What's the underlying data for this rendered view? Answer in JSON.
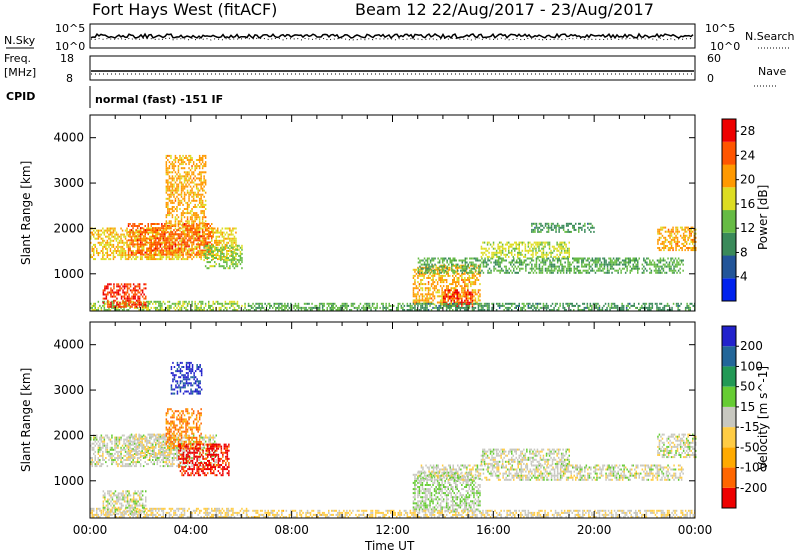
{
  "header": {
    "site": "Fort Hays West (fitACF)",
    "beam_date": "Beam 12 22/Aug/2017 - 23/Aug/2017"
  },
  "sky_panel": {
    "left_label": "N.Sky",
    "right_label": "N.Search",
    "left_ticks": [
      "10^5",
      "10^0"
    ],
    "right_ticks": [
      "10^5",
      "10^0"
    ]
  },
  "freq_panel": {
    "left_label_1": "Freq.",
    "left_label_2": "[MHz]",
    "right_label": "Nave",
    "left_ticks": [
      "18",
      "8"
    ],
    "right_ticks": [
      "60",
      "0"
    ]
  },
  "cpid": {
    "label": "CPID",
    "value": "normal (fast) -151 IF"
  },
  "colors": {
    "power_scale": [
      "#0022ee",
      "#225599",
      "#3a8a5a",
      "#66bb44",
      "#dddd22",
      "#ff9900",
      "#ff5500",
      "#ee0000"
    ],
    "velocity_scale": [
      "#ee0000",
      "#ff6600",
      "#ffaa00",
      "#ffcc44",
      "#c8c8c0",
      "#66cc33",
      "#229955",
      "#226699",
      "#2222cc"
    ]
  },
  "chart_data": [
    {
      "type": "heatmap",
      "name": "power",
      "title": "Fort Hays West (fitACF) Beam 12 22/Aug/2017 - 23/Aug/2017",
      "ylabel": "Slant Range [km]",
      "y_ticks": [
        "1000",
        "2000",
        "3000",
        "4000"
      ],
      "ylim": [
        180,
        4500
      ],
      "xlim_hours": [
        0,
        24
      ],
      "colorbar_label": "Power [dB]",
      "colorbar_ticks": [
        "4",
        "8",
        "12",
        "16",
        "20",
        "24",
        "28"
      ],
      "colorbar_range": [
        0,
        30
      ],
      "echo_regions": [
        {
          "t0": 0.0,
          "t1": 6.2,
          "r0": 180,
          "r1": 380,
          "value": 14
        },
        {
          "t0": 0.5,
          "t1": 2.2,
          "r0": 250,
          "r1": 750,
          "value": 26
        },
        {
          "t0": 0.0,
          "t1": 5.8,
          "r0": 1300,
          "r1": 2000,
          "value": 18
        },
        {
          "t0": 1.5,
          "t1": 4.8,
          "r0": 1400,
          "r1": 2100,
          "value": 24
        },
        {
          "t0": 3.0,
          "t1": 4.6,
          "r0": 2000,
          "r1": 3600,
          "value": 20
        },
        {
          "t0": 4.5,
          "t1": 6.0,
          "r0": 1100,
          "r1": 1600,
          "value": 14
        },
        {
          "t0": 6.2,
          "t1": 12.8,
          "r0": 180,
          "r1": 330,
          "value": 12
        },
        {
          "t0": 12.8,
          "t1": 15.5,
          "r0": 300,
          "r1": 1200,
          "value": 20
        },
        {
          "t0": 14.0,
          "t1": 15.2,
          "r0": 250,
          "r1": 650,
          "value": 27
        },
        {
          "t0": 12.8,
          "t1": 24.0,
          "r0": 180,
          "r1": 330,
          "value": 10
        },
        {
          "t0": 13.0,
          "t1": 23.5,
          "r0": 1000,
          "r1": 1350,
          "value": 12
        },
        {
          "t0": 15.5,
          "t1": 19.0,
          "r0": 1350,
          "r1": 1700,
          "value": 16
        },
        {
          "t0": 17.5,
          "t1": 20.0,
          "r0": 1900,
          "r1": 2100,
          "value": 10
        },
        {
          "t0": 22.5,
          "t1": 24.0,
          "r0": 1500,
          "r1": 2000,
          "value": 20
        }
      ]
    },
    {
      "type": "heatmap",
      "name": "velocity",
      "ylabel": "Slant Range [km]",
      "xlabel": "Time UT",
      "x_ticks": [
        "00:00",
        "04:00",
        "08:00",
        "12:00",
        "16:00",
        "20:00",
        "00:00"
      ],
      "y_ticks": [
        "1000",
        "2000",
        "3000",
        "4000"
      ],
      "ylim": [
        180,
        4500
      ],
      "xlim_hours": [
        0,
        24
      ],
      "colorbar_label": "Velocity [m s^-1]",
      "colorbar_ticks": [
        "200",
        "100",
        "50",
        "15",
        "-15",
        "-50",
        "-100",
        "-200"
      ],
      "colorbar_range": [
        -250,
        250
      ],
      "echo_regions": [
        {
          "t0": 0.0,
          "t1": 6.2,
          "r0": 180,
          "r1": 380,
          "value": -30
        },
        {
          "t0": 0.5,
          "t1": 2.2,
          "r0": 250,
          "r1": 750,
          "value": 0
        },
        {
          "t0": 0.0,
          "t1": 5.0,
          "r0": 1300,
          "r1": 2000,
          "value": 0
        },
        {
          "t0": 1.5,
          "t1": 3.2,
          "r0": 1500,
          "r1": 2000,
          "value": -10
        },
        {
          "t0": 3.0,
          "t1": 4.4,
          "r0": 1700,
          "r1": 2600,
          "value": -150
        },
        {
          "t0": 3.5,
          "t1": 5.5,
          "r0": 1100,
          "r1": 1800,
          "value": -220
        },
        {
          "t0": 3.2,
          "t1": 4.4,
          "r0": 2900,
          "r1": 3600,
          "value": 220
        },
        {
          "t0": 6.2,
          "t1": 12.8,
          "r0": 180,
          "r1": 330,
          "value": -40
        },
        {
          "t0": 12.8,
          "t1": 15.5,
          "r0": 300,
          "r1": 1200,
          "value": 20
        },
        {
          "t0": 12.8,
          "t1": 24.0,
          "r0": 180,
          "r1": 330,
          "value": -20
        },
        {
          "t0": 13.0,
          "t1": 23.5,
          "r0": 1000,
          "r1": 1350,
          "value": 0
        },
        {
          "t0": 15.5,
          "t1": 19.0,
          "r0": 1350,
          "r1": 1700,
          "value": 0
        },
        {
          "t0": 22.5,
          "t1": 24.0,
          "r0": 1500,
          "r1": 2000,
          "value": 0
        }
      ]
    }
  ]
}
